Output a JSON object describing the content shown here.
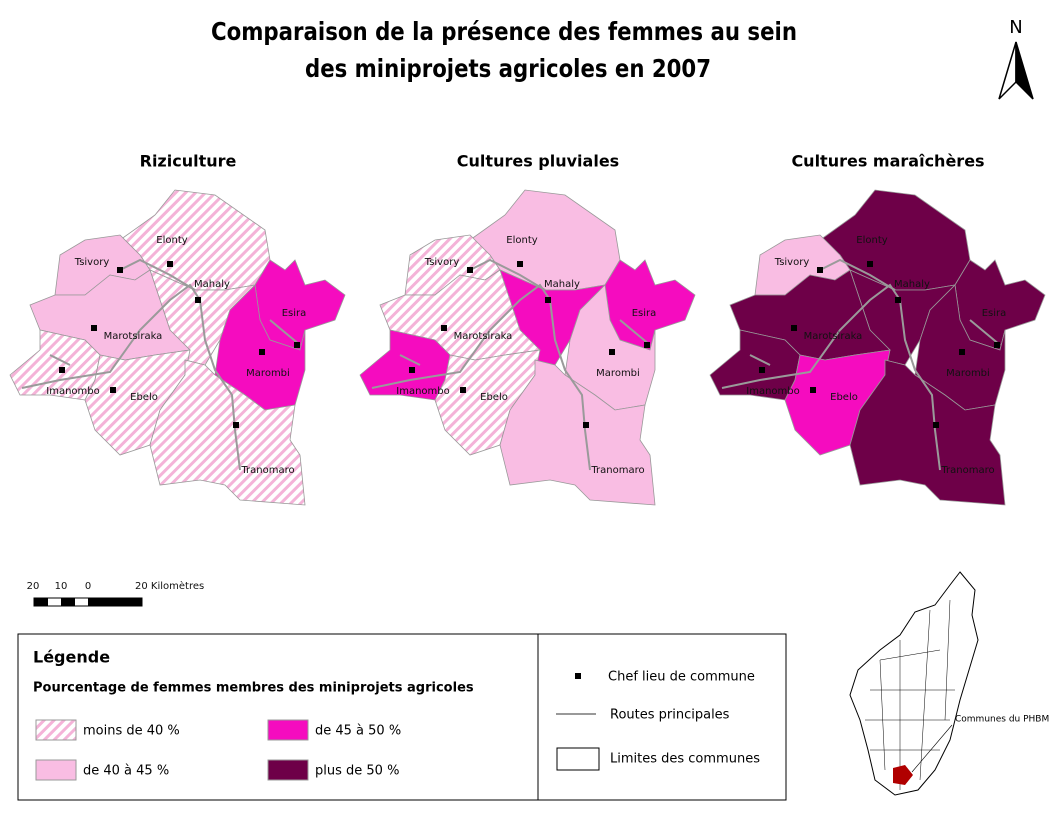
{
  "title": [
    "Comparaison de la présence des femmes au sein",
    "des miniprojets agricoles en 2007"
  ],
  "north": "N",
  "maps": [
    {
      "title": "Riziculture",
      "communes": [
        {
          "label": "Elonty",
          "fill": "hatch"
        },
        {
          "label": "Tsivory",
          "fill": "#f9bde3"
        },
        {
          "label": "Mahaly",
          "fill": "hatch"
        },
        {
          "label": "Marotsiraka",
          "fill": "#f9bde3"
        },
        {
          "label": "Imanombo",
          "fill": "hatch"
        },
        {
          "label": "Ebelo",
          "fill": "hatch"
        },
        {
          "label": "Esira",
          "fill": "#f50cbf"
        },
        {
          "label": "Marombi",
          "fill": "#f50cbf"
        },
        {
          "label": "Tranomaro",
          "fill": "hatch"
        }
      ]
    },
    {
      "title": "Cultures pluviales",
      "communes": [
        {
          "label": "Elonty",
          "fill": "#f9bde3"
        },
        {
          "label": "Tsivory",
          "fill": "hatch"
        },
        {
          "label": "Mahaly",
          "fill": "#f50cbf"
        },
        {
          "label": "Marotsiraka",
          "fill": "hatch"
        },
        {
          "label": "Imanombo",
          "fill": "#f50cbf"
        },
        {
          "label": "Ebelo",
          "fill": "hatch"
        },
        {
          "label": "Esira",
          "fill": "#f50cbf"
        },
        {
          "label": "Marombi",
          "fill": "#f9bde3"
        },
        {
          "label": "Tranomaro",
          "fill": "#f9bde3"
        }
      ]
    },
    {
      "title": "Cultures maraîchères",
      "communes": [
        {
          "label": "Elonty",
          "fill": "#6e0048"
        },
        {
          "label": "Tsivory",
          "fill": "#f9bde3"
        },
        {
          "label": "Mahaly",
          "fill": "#6e0048"
        },
        {
          "label": "Marotsiraka",
          "fill": "#6e0048"
        },
        {
          "label": "Imanombo",
          "fill": "#6e0048"
        },
        {
          "label": "Ebelo",
          "fill": "#f50cbf"
        },
        {
          "label": "Esira",
          "fill": "#6e0048"
        },
        {
          "label": "Marombi",
          "fill": "#6e0048"
        },
        {
          "label": "Tranomaro",
          "fill": "#6e0048"
        }
      ]
    }
  ],
  "scale": {
    "ticks": [
      "20",
      "10",
      "0"
    ],
    "end": "20 Kilomètres"
  },
  "legend": {
    "title": "Légende",
    "subtitle": "Pourcentage de femmes membres des miniprojets agricoles",
    "classes": [
      {
        "label": "moins de 40 %",
        "fill": "hatch"
      },
      {
        "label": "de 40 à 45 %",
        "fill": "#f9bde3"
      },
      {
        "label": "de 45 à 50 %",
        "fill": "#f50cbf"
      },
      {
        "label": "plus de 50 %",
        "fill": "#6e0048"
      }
    ],
    "symbols": [
      "Chef lieu de commune",
      "Routes principales",
      "Limites des communes"
    ]
  },
  "inset": {
    "label": "Communes du PHBM"
  }
}
